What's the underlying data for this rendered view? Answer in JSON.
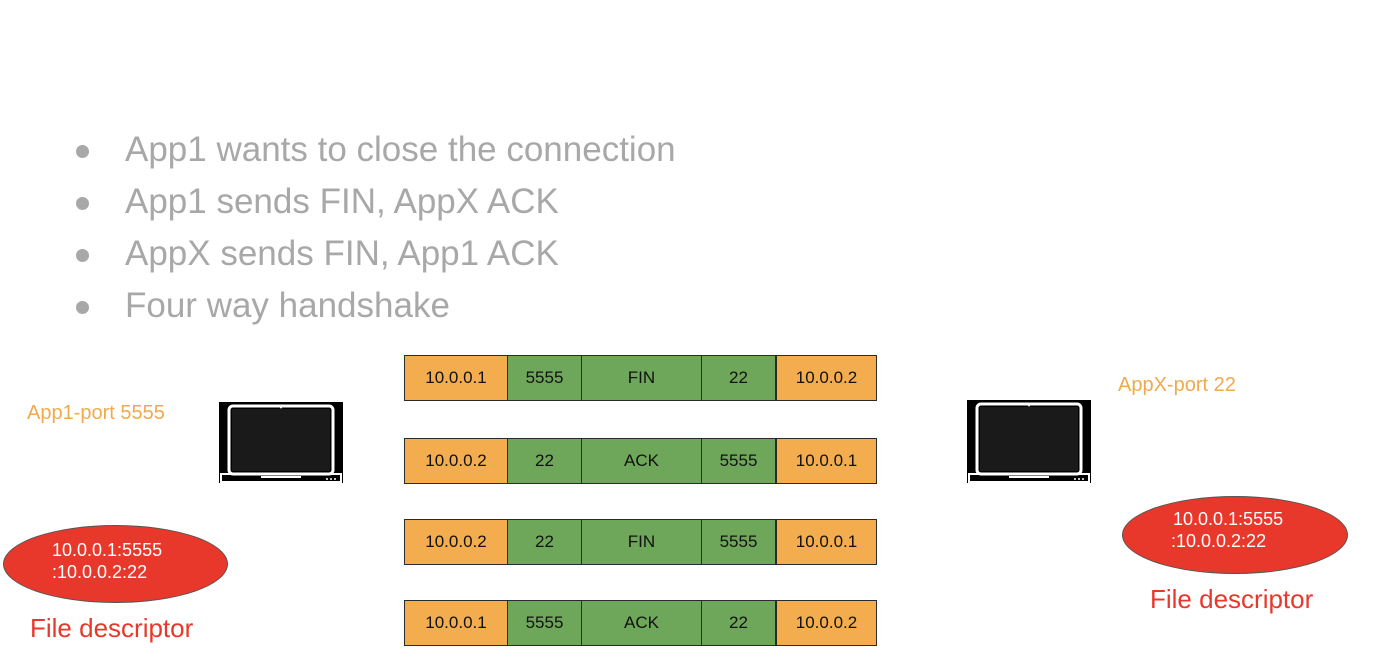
{
  "bullets": [
    "App1 wants to close the connection",
    "App1 sends FIN, AppX ACK",
    "AppX sends FIN, App1 ACK",
    "Four way handshake"
  ],
  "left_host": {
    "label": "App1-port 5555",
    "descriptor_line1": "10.0.0.1:5555",
    "descriptor_line2": ":10.0.0.2:22",
    "descriptor_caption": "File descriptor"
  },
  "right_host": {
    "label": "AppX-port 22",
    "descriptor_line1": "10.0.0.1:5555",
    "descriptor_line2": ":10.0.0.2:22",
    "descriptor_caption": "File descriptor"
  },
  "packets": [
    {
      "src_ip": "10.0.0.1",
      "src_port": "5555",
      "flag": "FIN",
      "dst_port": "22",
      "dst_ip": "10.0.0.2"
    },
    {
      "src_ip": "10.0.0.2",
      "src_port": "22",
      "flag": "ACK",
      "dst_port": "5555",
      "dst_ip": "10.0.0.1"
    },
    {
      "src_ip": "10.0.0.2",
      "src_port": "22",
      "flag": "FIN",
      "dst_port": "5555",
      "dst_ip": "10.0.0.1"
    },
    {
      "src_ip": "10.0.0.1",
      "src_port": "5555",
      "flag": "ACK",
      "dst_port": "22",
      "dst_ip": "10.0.0.2"
    }
  ],
  "colors": {
    "ip_cell": "#f3ad4e",
    "port_cell": "#6fa75a",
    "descriptor": "#e8382b",
    "host_label": "#f0a94c",
    "bullet_text": "#a8a8a8"
  }
}
